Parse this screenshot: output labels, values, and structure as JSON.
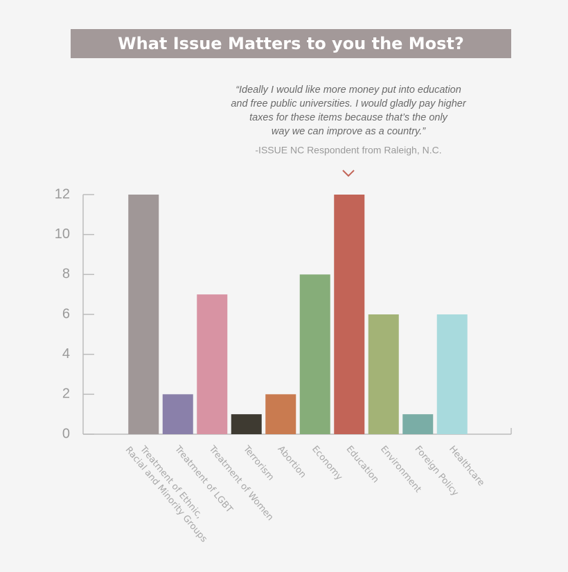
{
  "chart_data": {
    "type": "bar",
    "title": "What Issue Matters to you the Most?",
    "annotation": {
      "quote": [
        "“Ideally I would like more money put into education",
        "and free public universities. I would gladly pay higher",
        "taxes for these items because that’s the only",
        "way we can improve as a country.”"
      ],
      "source": "-ISSUE NC Respondent from Raleigh, N.C."
    },
    "categories": [
      [
        "Treatment of Ethnic,",
        "Racial and Minority Groups"
      ],
      "Treatment of LGBT",
      "Treatment of Women",
      "Terrorism",
      "Abortion",
      "Economy",
      "Education",
      "Environment",
      "Foreign Policy",
      "Healthcare"
    ],
    "values": [
      12,
      2,
      7,
      1,
      2,
      8,
      12,
      6,
      1,
      6
    ],
    "colors": [
      "#a09797",
      "#8a80aa",
      "#d893a3",
      "#3e3a31",
      "#c97b50",
      "#86ad79",
      "#c26457",
      "#a3b376",
      "#7aada6",
      "#a8dadd"
    ],
    "ylim": [
      0,
      12
    ],
    "yticks": [
      0,
      2,
      4,
      6,
      8,
      10,
      12
    ]
  }
}
